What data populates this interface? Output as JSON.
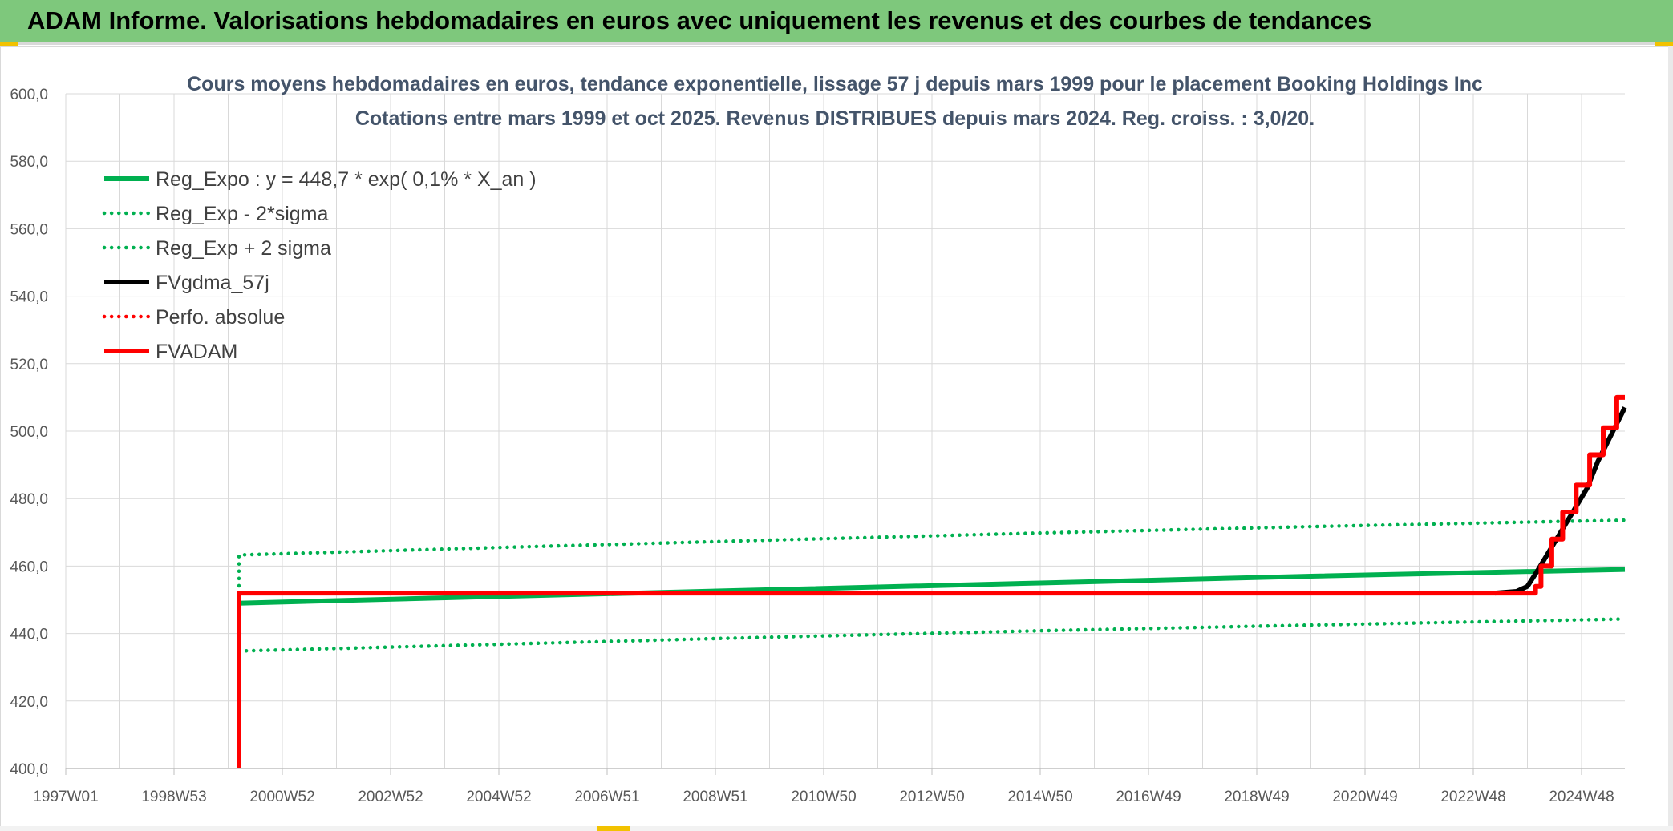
{
  "banner": {
    "title": "ADAM Informe. Valorisations hebdomadaires en euros avec uniquement les revenus et des courbes de tendances"
  },
  "colors": {
    "banner_bg": "#7ec87c",
    "green": "#00b050",
    "red": "#ff0000",
    "black": "#000000",
    "grid": "#d9d9d9",
    "title_text": "#44546a"
  },
  "chart_data": {
    "type": "line",
    "title_lines": [
      "Cours moyens hebdomadaires en euros, tendance exponentielle, lissage 57 j depuis mars 1999 pour le placement Booking Holdings Inc",
      "Cotations entre mars 1999 et oct 2025. Revenus DISTRIBUES depuis mars 2024. Reg. croiss. : 3,0/20."
    ],
    "xlabel": "",
    "ylabel": "",
    "x_tick_labels": [
      "1997W01",
      "1998W53",
      "2000W52",
      "2002W52",
      "2004W52",
      "2006W51",
      "2008W51",
      "2010W50",
      "2012W50",
      "2014W50",
      "2016W49",
      "2018W49",
      "2020W49",
      "2022W48",
      "2024W48"
    ],
    "x_range": [
      1997.0,
      2025.8
    ],
    "y_tick_labels": [
      "400,0",
      "420,0",
      "440,0",
      "460,0",
      "480,0",
      "500,0",
      "520,0",
      "540,0",
      "560,0",
      "580,0",
      "600,0"
    ],
    "ylim": [
      400,
      600
    ],
    "grid": true,
    "legend_position": "top-left",
    "legend": [
      {
        "label": "Reg_Expo : y = 448,7 * exp( 0,1% *  X_an )",
        "color": "#00b050",
        "style": "solid"
      },
      {
        "label": "Reg_Exp - 2*sigma",
        "color": "#00b050",
        "style": "dotted"
      },
      {
        "label": "Reg_Exp + 2 sigma",
        "color": "#00b050",
        "style": "dotted"
      },
      {
        "label": "FVgdma_57j",
        "color": "#000000",
        "style": "solid"
      },
      {
        "label": "Perfo. absolue",
        "color": "#ff0000",
        "style": "dotted"
      },
      {
        "label": "FVADAM",
        "color": "#ff0000",
        "style": "solid"
      }
    ],
    "series": [
      {
        "name": "Reg_Expo : y = 448,7 * exp( 0,1% *  X_an )",
        "color": "#00b050",
        "style": "solid",
        "points": [
          [
            2000.2,
            445.0
          ],
          [
            2000.2,
            449.0
          ],
          [
            2005.0,
            451.0
          ],
          [
            2010.0,
            453.0
          ],
          [
            2015.0,
            455.0
          ],
          [
            2020.0,
            457.0
          ],
          [
            2025.8,
            459.0
          ]
        ]
      },
      {
        "name": "Reg_Exp - 2*sigma",
        "color": "#00b050",
        "style": "dotted",
        "points": [
          [
            2000.2,
            434.8
          ],
          [
            2005.0,
            436.8
          ],
          [
            2010.0,
            438.9
          ],
          [
            2015.0,
            440.8
          ],
          [
            2020.0,
            442.5
          ],
          [
            2025.8,
            444.3
          ]
        ]
      },
      {
        "name": "Reg_Exp + 2 sigma",
        "color": "#00b050",
        "style": "dotted",
        "points": [
          [
            2000.2,
            452.0
          ],
          [
            2000.2,
            463.3
          ],
          [
            2005.0,
            465.5
          ],
          [
            2010.0,
            467.7
          ],
          [
            2015.0,
            469.8
          ],
          [
            2020.0,
            471.7
          ],
          [
            2025.8,
            473.6
          ]
        ]
      },
      {
        "name": "FVgdma_57j",
        "color": "#000000",
        "style": "solid",
        "points": [
          [
            2023.4,
            452.0
          ],
          [
            2023.8,
            452.5
          ],
          [
            2024.0,
            454.0
          ],
          [
            2024.2,
            459.0
          ],
          [
            2024.5,
            467.0
          ],
          [
            2024.8,
            475.0
          ],
          [
            2025.1,
            483.0
          ],
          [
            2025.3,
            491.0
          ],
          [
            2025.55,
            499.0
          ],
          [
            2025.8,
            507.0
          ]
        ]
      },
      {
        "name": "FVADAM",
        "color": "#ff0000",
        "style": "solid",
        "points": [
          [
            2000.2,
            400.0
          ],
          [
            2000.2,
            452.0
          ],
          [
            2024.15,
            452.0
          ],
          [
            2024.15,
            454.0
          ],
          [
            2024.25,
            454.0
          ],
          [
            2024.25,
            460.0
          ],
          [
            2024.45,
            460.0
          ],
          [
            2024.45,
            468.0
          ],
          [
            2024.65,
            468.0
          ],
          [
            2024.65,
            476.0
          ],
          [
            2024.9,
            476.0
          ],
          [
            2024.9,
            484.0
          ],
          [
            2025.15,
            484.0
          ],
          [
            2025.15,
            493.0
          ],
          [
            2025.4,
            493.0
          ],
          [
            2025.4,
            501.0
          ],
          [
            2025.65,
            501.0
          ],
          [
            2025.65,
            510.0
          ],
          [
            2025.8,
            510.0
          ]
        ]
      }
    ]
  }
}
